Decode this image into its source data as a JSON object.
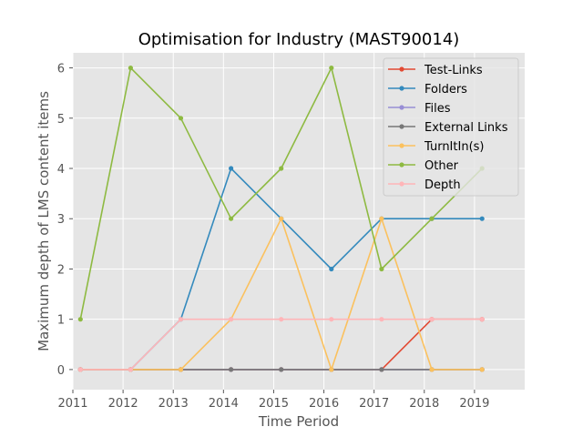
{
  "chart_data": {
    "type": "line",
    "title": "Optimisation for Industry (MAST90014)",
    "xlabel": "Time Period",
    "ylabel": "Maximum depth of LMS content items",
    "xlim": [
      2011.0,
      2020.0
    ],
    "ylim": [
      -0.4,
      6.3
    ],
    "xticks": [
      2011,
      2012,
      2013,
      2014,
      2015,
      2016,
      2017,
      2018,
      2019
    ],
    "yticks": [
      0,
      1,
      2,
      3,
      4,
      5,
      6
    ],
    "grid": true,
    "legend_position": "top-right",
    "x": [
      2011.15,
      2012.15,
      2013.15,
      2014.15,
      2015.15,
      2016.15,
      2017.15,
      2018.15,
      2019.15
    ],
    "series": [
      {
        "name": "Test-Links",
        "color": "#E24A33",
        "values": [
          0,
          0,
          0,
          0,
          0,
          0,
          0,
          1,
          1
        ]
      },
      {
        "name": "Folders",
        "color": "#348ABD",
        "values": [
          0,
          0,
          1,
          4,
          3,
          2,
          3,
          3,
          3
        ]
      },
      {
        "name": "Files",
        "color": "#988ED5",
        "values": [
          0,
          0,
          0,
          0,
          0,
          0,
          0,
          0,
          0
        ]
      },
      {
        "name": "External Links",
        "color": "#777777",
        "values": [
          0,
          0,
          0,
          0,
          0,
          0,
          0,
          0,
          0
        ]
      },
      {
        "name": "TurnItIn(s)",
        "color": "#FBC15E",
        "values": [
          0,
          0,
          0,
          1,
          3,
          0,
          3,
          0,
          0
        ]
      },
      {
        "name": "Other",
        "color": "#8EBA42",
        "values": [
          1,
          6,
          5,
          3,
          4,
          6,
          2,
          3,
          4
        ]
      },
      {
        "name": "Depth",
        "color": "#FFB5B8",
        "values": [
          0,
          0,
          1,
          1,
          1,
          1,
          1,
          1,
          1
        ]
      }
    ]
  }
}
